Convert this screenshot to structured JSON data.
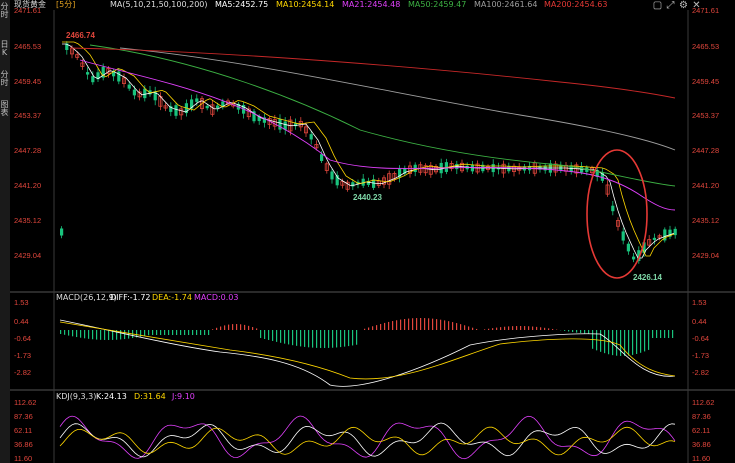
{
  "side_tabs": [
    "分时",
    "日K",
    "分时",
    "图表"
  ],
  "main_header": {
    "symbol": "现货黄金",
    "period": "[5分]",
    "ma_label": "MA(5,10,21,50,100,200)",
    "ma5": "MA5:2452.75",
    "ma10": "MA10:2454.14",
    "ma21": "MA21:2454.48",
    "ma50": "MA50:2459.47",
    "ma100": "MA100:2461.64",
    "ma200": "MA200:2454.63"
  },
  "price_axis": [
    "2471.61",
    "2465.53",
    "2459.45",
    "2453.37",
    "2447.28",
    "2441.20",
    "2435.12",
    "2429.04"
  ],
  "annotations": {
    "high": "2466.74",
    "low1": "2440.23",
    "low2": "2426.14"
  },
  "macd_header": {
    "label": "MACD(26,12,9)",
    "diff": "DIFF:-1.72",
    "dea": "DEA:-1.74",
    "macd": "MACD:0.03"
  },
  "macd_axis": [
    "1.53",
    "0.44",
    "-0.64",
    "-1.73",
    "-2.82"
  ],
  "kdj_header": {
    "label": "KDJ(9,3,3)",
    "k": "K:24.13",
    "d": "D:31.64",
    "j": "J:9.10"
  },
  "kdj_axis": [
    "112.62",
    "87.36",
    "62.11",
    "36.86",
    "11.60"
  ],
  "colors": {
    "up": "#e0463c",
    "down": "#19c37d",
    "ma5": "#ffffff",
    "ma10": "#ffd700",
    "ma21": "#e040fb",
    "ma50": "#3cb043",
    "ma100": "#9e9e9e",
    "ma200": "#c62828",
    "highlight": "#e53935"
  },
  "icons": [
    "window-icon",
    "expand-icon",
    "settings-icon",
    "close-icon"
  ]
}
